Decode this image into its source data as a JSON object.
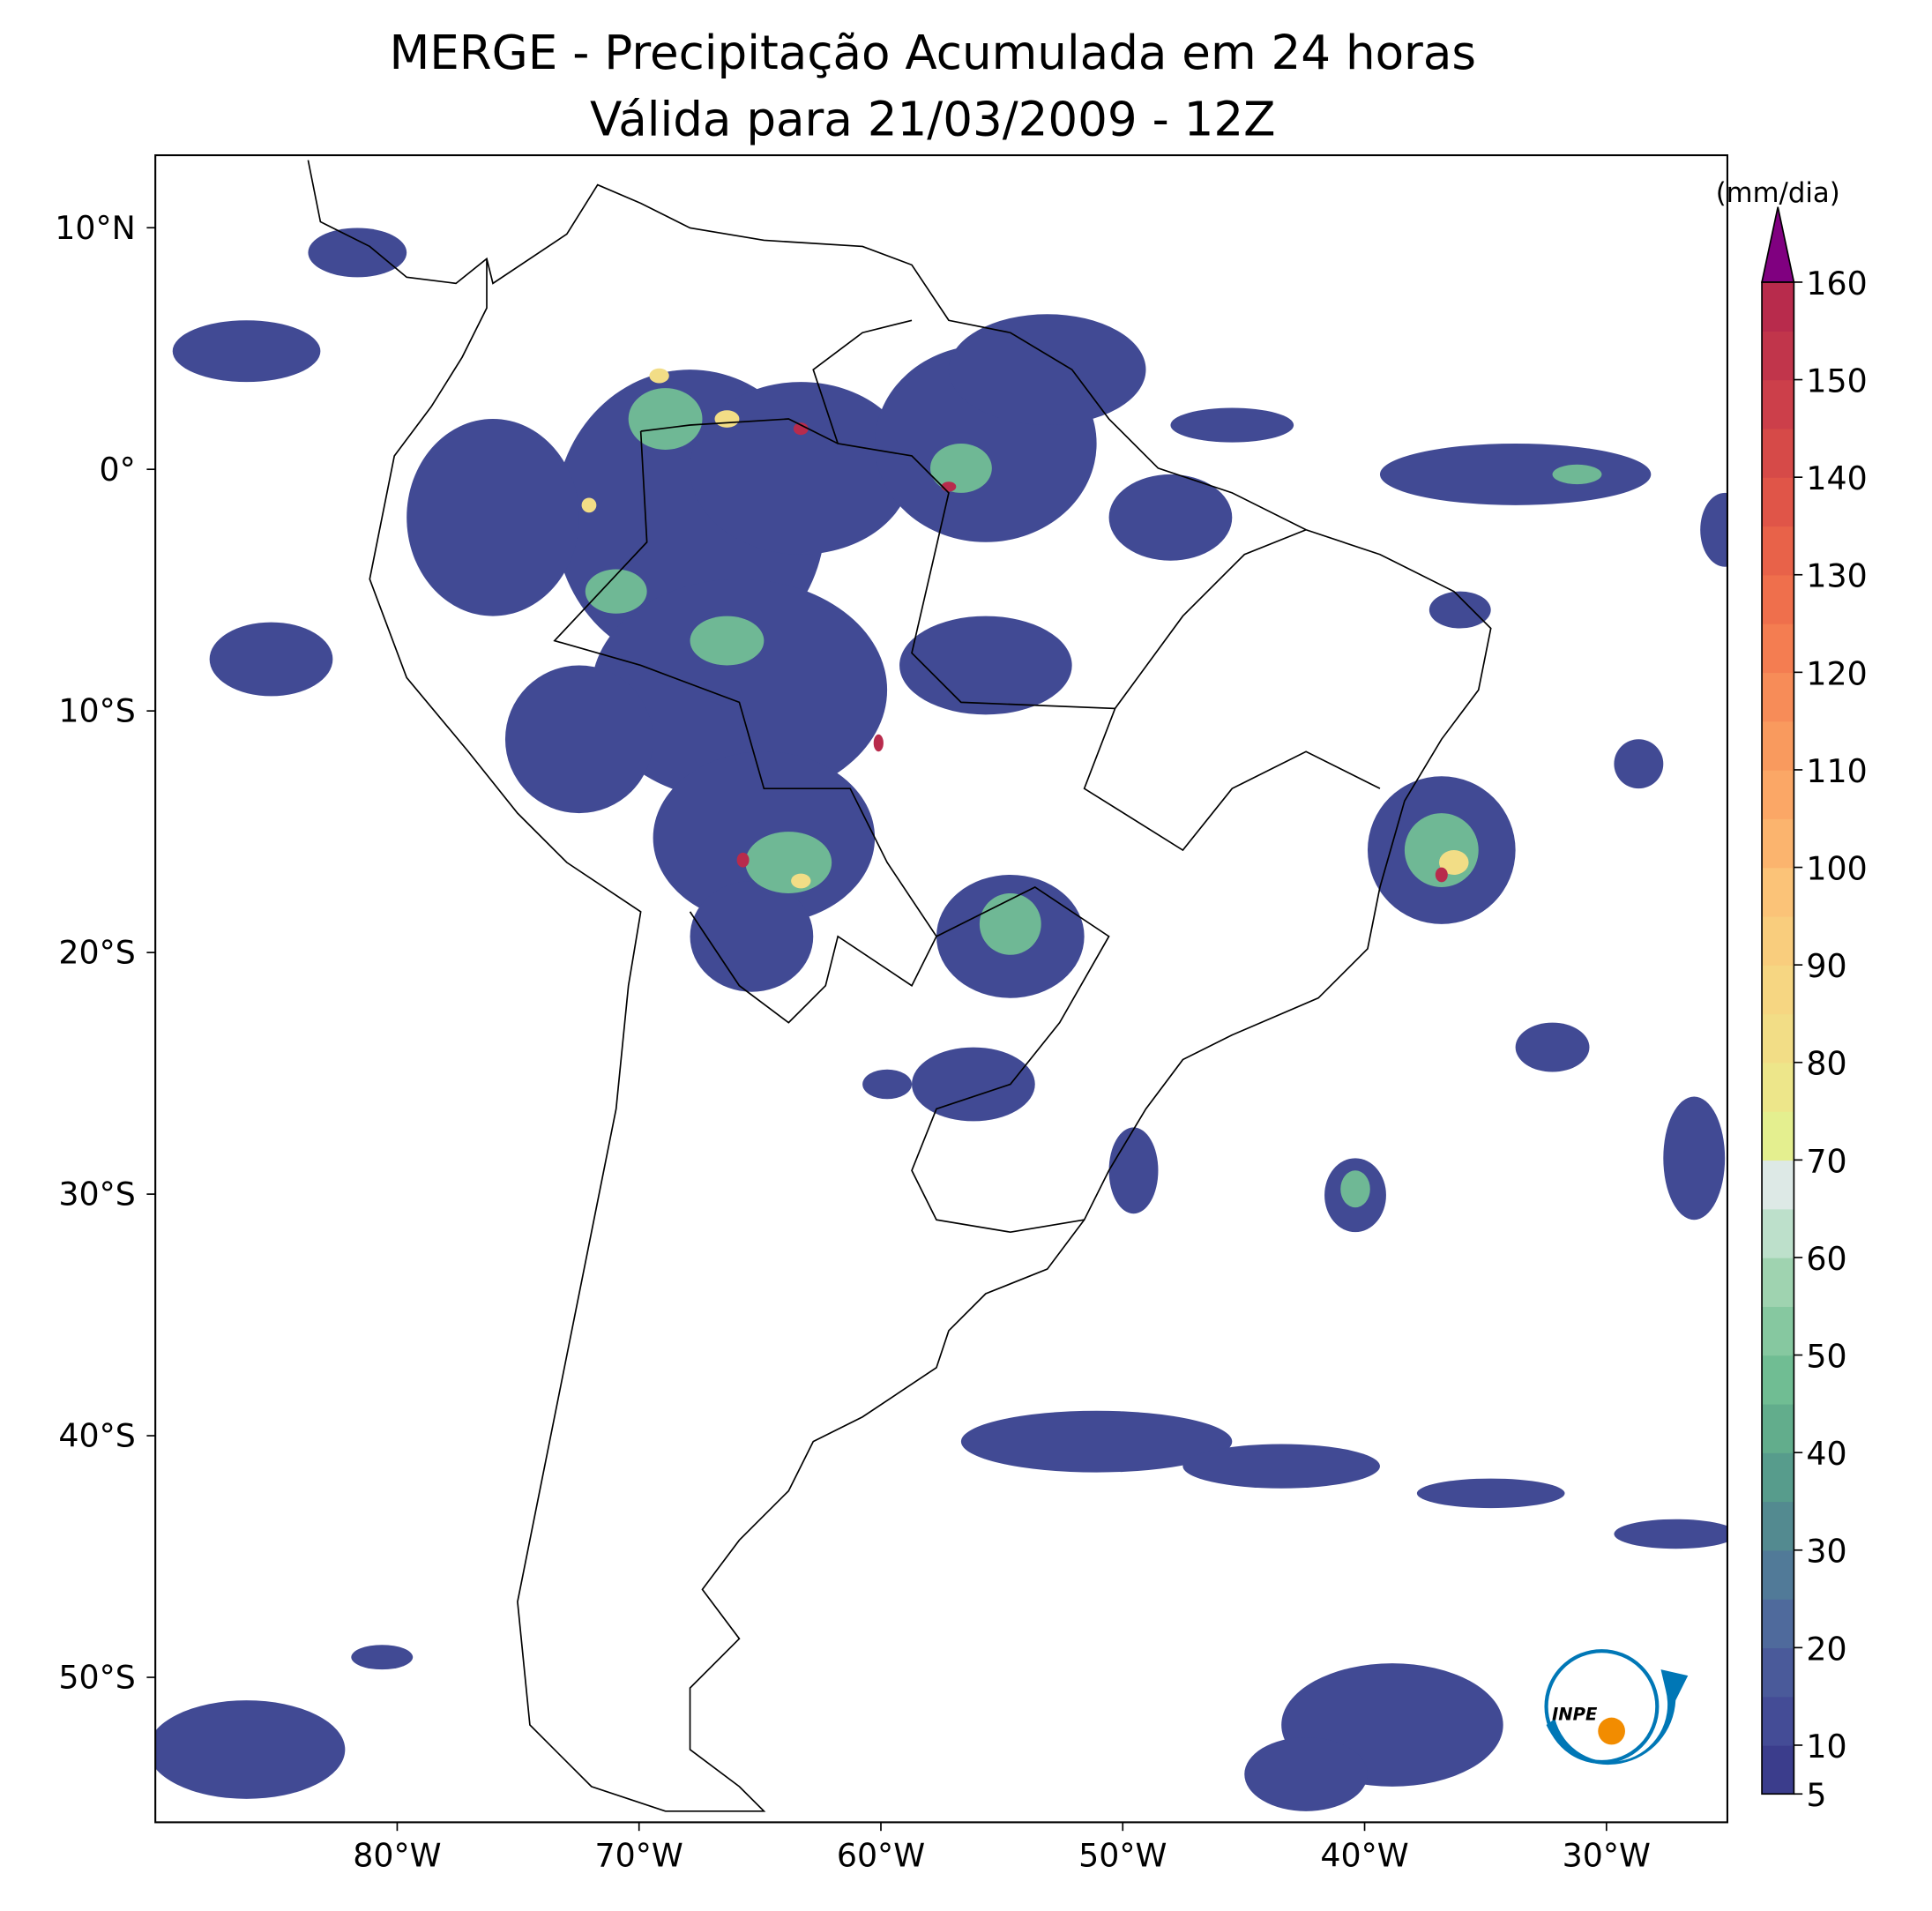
{
  "chart_data": {
    "type": "map",
    "title": "MERGE - Precipitação Acumulada em 24 horas",
    "subtitle": "Válida para 21/03/2009 - 12Z",
    "xlim": [
      -90,
      -25
    ],
    "ylim": [
      -56,
      13
    ],
    "xticks": [
      {
        "value": -80,
        "label": "80°W"
      },
      {
        "value": -70,
        "label": "70°W"
      },
      {
        "value": -60,
        "label": "60°W"
      },
      {
        "value": -50,
        "label": "50°W"
      },
      {
        "value": -40,
        "label": "40°W"
      },
      {
        "value": -30,
        "label": "30°W"
      }
    ],
    "yticks": [
      {
        "value": 10,
        "label": "10°N"
      },
      {
        "value": 0,
        "label": "0°"
      },
      {
        "value": -10,
        "label": "10°S"
      },
      {
        "value": -20,
        "label": "20°S"
      },
      {
        "value": -30,
        "label": "30°S"
      },
      {
        "value": -40,
        "label": "40°S"
      },
      {
        "value": -50,
        "label": "50°S"
      }
    ],
    "colorbar": {
      "label": "(mm/dia)",
      "ticks": [
        5,
        10,
        15,
        20,
        25,
        30,
        35,
        40,
        45,
        50,
        55,
        60,
        65,
        70,
        75,
        80,
        85,
        90,
        95,
        100,
        105,
        110,
        115,
        120,
        125,
        130,
        135,
        140,
        145,
        150,
        155,
        160
      ],
      "tick_labels_shown": [
        5,
        10,
        20,
        30,
        40,
        50,
        60,
        70,
        80,
        90,
        100,
        110,
        120,
        130,
        140,
        150,
        160
      ],
      "colors": [
        "#3b3d8c",
        "#444c96",
        "#4a5a9a",
        "#4f6a9c",
        "#517a98",
        "#538a90",
        "#579c8c",
        "#62ad8c",
        "#70bd93",
        "#86c8a0",
        "#9fd3b0",
        "#bde0cb",
        "#dde9e6",
        "#e4ef8f",
        "#ede68a",
        "#f2dd86",
        "#f6d682",
        "#f9cd7d",
        "#fbc378",
        "#fbb46e",
        "#fba766",
        "#f99a5e",
        "#f78c58",
        "#f47d51",
        "#ef6f4c",
        "#e86249",
        "#e05548",
        "#d64a48",
        "#cc3f4a",
        "#c1354b",
        "#b82b4c"
      ],
      "extend_color": "#800080"
    },
    "logo_text": "INPE"
  }
}
